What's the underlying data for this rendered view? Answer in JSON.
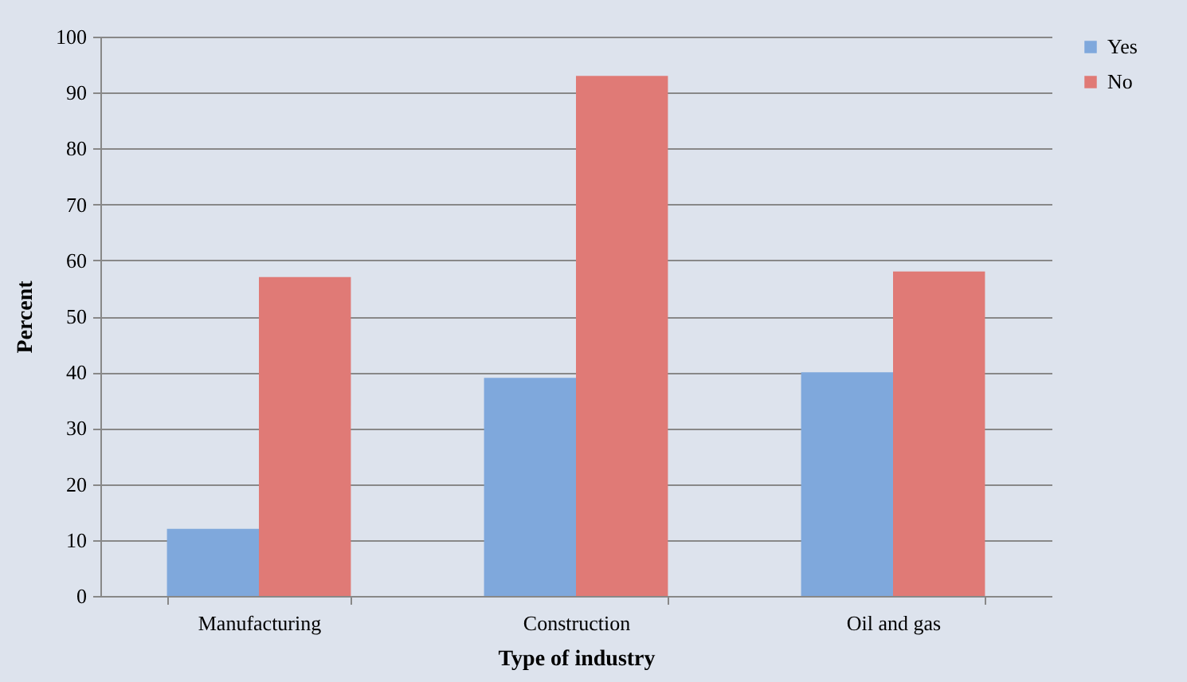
{
  "chart_data": {
    "type": "bar",
    "xlabel": "Type of industry",
    "ylabel": "Percent",
    "categories": [
      "Manufacturing",
      "Construction",
      "Oil and gas"
    ],
    "series": [
      {
        "name": "Yes",
        "color": "#7fa8dc",
        "values": [
          12,
          39,
          40
        ]
      },
      {
        "name": "No",
        "color": "#e07a76",
        "values": [
          57,
          93,
          58
        ]
      }
    ],
    "ylim": [
      0,
      100
    ],
    "yticks": [
      0,
      10,
      20,
      30,
      40,
      50,
      60,
      70,
      80,
      90,
      100
    ],
    "grid": "y",
    "legend": "right"
  }
}
